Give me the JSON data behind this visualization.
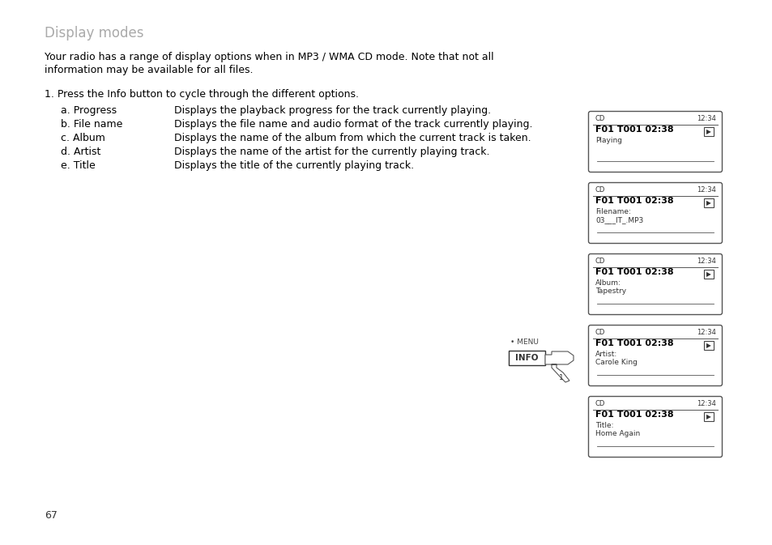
{
  "title": "Display modes",
  "title_color": "#aaaaaa",
  "bg_color": "#ffffff",
  "body_text_color": "#000000",
  "paragraph_line1": "Your radio has a range of display options when in MP3 / WMA CD mode. Note that not all",
  "paragraph_line2": "information may be available for all files.",
  "instruction": "1. Press the Info button to cycle through the different options.",
  "items": [
    [
      "a. Progress",
      "Displays the playback progress for the track currently playing."
    ],
    [
      "b. File name",
      "Displays the file name and audio format of the track currently playing."
    ],
    [
      "c. Album",
      "Displays the name of the album from which the current track is taken."
    ],
    [
      "d. Artist",
      "Displays the name of the artist for the currently playing track."
    ],
    [
      "e. Title",
      "Displays the title of the currently playing track."
    ]
  ],
  "screens": [
    {
      "label1": "Playing",
      "label2": ""
    },
    {
      "label1": "Filename:",
      "label2": "03___IT_.MP3"
    },
    {
      "label1": "Album:",
      "label2": "Tapestry"
    },
    {
      "label1": "Artist:",
      "label2": "Carole King"
    },
    {
      "label1": "Title:",
      "label2": "Home Again"
    }
  ],
  "screen_header_left": "CD",
  "screen_header_right": "12:34",
  "screen_title": "F01 T001 02:38",
  "page_number": "67",
  "menu_label": "• MENU",
  "info_label": "INFO"
}
